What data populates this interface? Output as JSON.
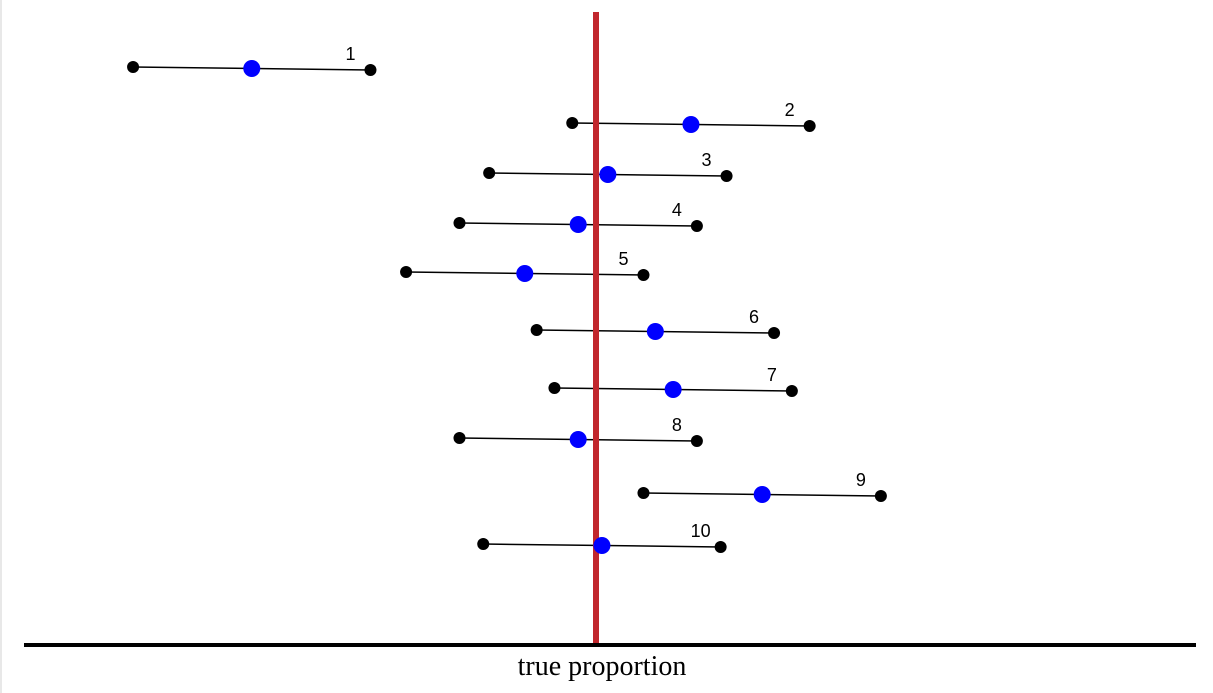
{
  "axis": {
    "label": "true proportion"
  },
  "colors": {
    "true_value_line": "#c1272d",
    "point_estimate": "#0000ff",
    "endpoint": "#000000",
    "interval_line": "#000000",
    "axis_line": "#000000"
  },
  "true_value": 0.5,
  "intervals": [
    {
      "label": "1",
      "estimate": 0.21,
      "lower": 0.11,
      "upper": 0.31
    },
    {
      "label": "2",
      "estimate": 0.58,
      "lower": 0.48,
      "upper": 0.68
    },
    {
      "label": "3",
      "estimate": 0.51,
      "lower": 0.41,
      "upper": 0.61
    },
    {
      "label": "4",
      "estimate": 0.485,
      "lower": 0.385,
      "upper": 0.585
    },
    {
      "label": "5",
      "estimate": 0.44,
      "lower": 0.34,
      "upper": 0.54
    },
    {
      "label": "6",
      "estimate": 0.55,
      "lower": 0.45,
      "upper": 0.65
    },
    {
      "label": "7",
      "estimate": 0.565,
      "lower": 0.465,
      "upper": 0.665
    },
    {
      "label": "8",
      "estimate": 0.485,
      "lower": 0.385,
      "upper": 0.585
    },
    {
      "label": "9",
      "estimate": 0.64,
      "lower": 0.54,
      "upper": 0.74
    },
    {
      "label": "10",
      "estimate": 0.505,
      "lower": 0.405,
      "upper": 0.605
    }
  ]
}
